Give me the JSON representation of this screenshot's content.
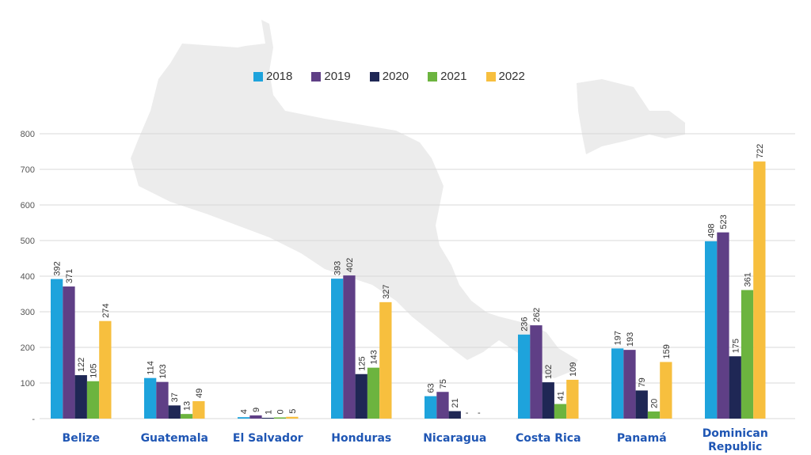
{
  "chart_data": {
    "type": "bar",
    "title": "",
    "xlabel": "",
    "ylabel": "",
    "ylim": [
      0,
      800
    ],
    "yticks": [
      "-",
      "100",
      "200",
      "300",
      "400",
      "500",
      "600",
      "700",
      "800"
    ],
    "grid": true,
    "legend_position": "top-center",
    "categories": [
      "Belize",
      "Guatemala",
      "El Salvador",
      "Honduras",
      "Nicaragua",
      "Costa Rica",
      "Panamá",
      "Dominican Republic"
    ],
    "category_label_lines": [
      [
        "Belize"
      ],
      [
        "Guatemala"
      ],
      [
        "El Salvador"
      ],
      [
        "Honduras"
      ],
      [
        "Nicaragua"
      ],
      [
        "Costa Rica"
      ],
      [
        "Panamá"
      ],
      [
        "Dominican",
        "Republic"
      ]
    ],
    "series": [
      {
        "name": "2018",
        "color": "#1ea3dc",
        "values": [
          392,
          114,
          4,
          393,
          63,
          236,
          197,
          498
        ]
      },
      {
        "name": "2019",
        "color": "#5f3f86",
        "values": [
          371,
          103,
          9,
          402,
          75,
          262,
          193,
          523
        ]
      },
      {
        "name": "2020",
        "color": "#1f2755",
        "values": [
          122,
          37,
          1,
          125,
          21,
          102,
          79,
          175
        ]
      },
      {
        "name": "2021",
        "color": "#6cb43f",
        "values": [
          105,
          13,
          0,
          143,
          null,
          41,
          20,
          361
        ]
      },
      {
        "name": "2022",
        "color": "#f7bf3e",
        "values": [
          274,
          49,
          5,
          327,
          null,
          109,
          159,
          722
        ]
      }
    ],
    "missing_label": "-"
  }
}
